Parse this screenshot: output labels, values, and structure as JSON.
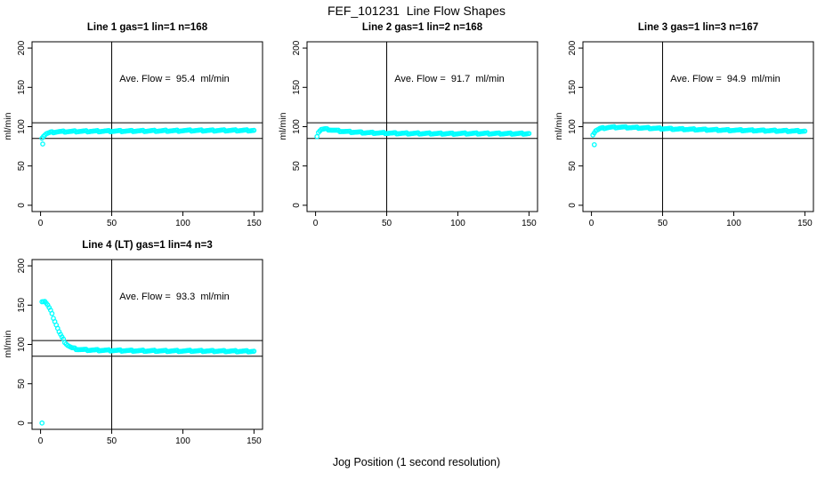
{
  "figure": {
    "title": "FEF_101231  Line Flow Shapes",
    "xlabel": "Jog Position (1 second resolution)",
    "point_color": "#00ffff",
    "axis_color": "#000000",
    "background": "#ffffff"
  },
  "chart_data": [
    {
      "type": "scatter",
      "title": "Line 1 gas=1 lin=1 n=168",
      "annotation": "Ave. Flow =  95.4  ml/min",
      "ave_flow_ml_min": 95.4,
      "gas": 1,
      "lin": 1,
      "n": 168,
      "ylabel": "ml/min",
      "xlim": [
        0,
        150
      ],
      "ylim": [
        0,
        200
      ],
      "xticks": [
        0,
        50,
        100,
        150
      ],
      "yticks": [
        0,
        50,
        100,
        150,
        200
      ],
      "ref_hlines": [
        85,
        105
      ],
      "ref_vline": 50,
      "points_x_range": [
        1,
        150
      ],
      "profile": [
        [
          1,
          86
        ],
        [
          2,
          88
        ],
        [
          4,
          91
        ],
        [
          7,
          92.5
        ],
        [
          12,
          93.5
        ],
        [
          25,
          94
        ],
        [
          60,
          94.5
        ],
        [
          100,
          95
        ],
        [
          150,
          95.3
        ]
      ],
      "outliers": [
        [
          1.5,
          78
        ]
      ]
    },
    {
      "type": "scatter",
      "title": "Line 2 gas=1 lin=2 n=168",
      "annotation": "Ave. Flow =  91.7  ml/min",
      "ave_flow_ml_min": 91.7,
      "gas": 1,
      "lin": 2,
      "n": 168,
      "ylabel": "ml/min",
      "xlim": [
        0,
        150
      ],
      "ylim": [
        0,
        200
      ],
      "xticks": [
        0,
        50,
        100,
        150
      ],
      "yticks": [
        0,
        50,
        100,
        150,
        200
      ],
      "ref_hlines": [
        85,
        105
      ],
      "ref_vline": 50,
      "points_x_range": [
        1,
        150
      ],
      "profile": [
        [
          1,
          88
        ],
        [
          2,
          93
        ],
        [
          4,
          96.5
        ],
        [
          7,
          96.8
        ],
        [
          12,
          95.5
        ],
        [
          20,
          93.8
        ],
        [
          35,
          92.3
        ],
        [
          60,
          91.5
        ],
        [
          100,
          91.2
        ],
        [
          150,
          91.2
        ]
      ],
      "outliers": []
    },
    {
      "type": "scatter",
      "title": "Line 3 gas=1 lin=3 n=167",
      "annotation": "Ave. Flow =  94.9  ml/min",
      "ave_flow_ml_min": 94.9,
      "gas": 1,
      "lin": 3,
      "n": 167,
      "ylabel": "ml/min",
      "xlim": [
        0,
        150
      ],
      "ylim": [
        0,
        200
      ],
      "xticks": [
        0,
        50,
        100,
        150
      ],
      "yticks": [
        0,
        50,
        100,
        150,
        200
      ],
      "ref_hlines": [
        85,
        105
      ],
      "ref_vline": 50,
      "points_x_range": [
        1,
        150
      ],
      "profile": [
        [
          1,
          90
        ],
        [
          3,
          95
        ],
        [
          6,
          97.5
        ],
        [
          12,
          99
        ],
        [
          20,
          99.3
        ],
        [
          35,
          98.5
        ],
        [
          60,
          97
        ],
        [
          100,
          95.5
        ],
        [
          150,
          94.3
        ]
      ],
      "outliers": [
        [
          2,
          77
        ]
      ]
    },
    {
      "type": "scatter",
      "title": "Line 4 (LT) gas=1 lin=4 n=3",
      "annotation": "Ave. Flow =  93.3  ml/min",
      "ave_flow_ml_min": 93.3,
      "gas": 1,
      "lin": 4,
      "n": 3,
      "ylabel": "ml/min",
      "xlim": [
        0,
        150
      ],
      "ylim": [
        0,
        200
      ],
      "xticks": [
        0,
        50,
        100,
        150
      ],
      "yticks": [
        0,
        50,
        100,
        150,
        200
      ],
      "ref_hlines": [
        85,
        105
      ],
      "ref_vline": 50,
      "points_x_range": [
        1,
        150
      ],
      "profile": [
        [
          1,
          155
        ],
        [
          3,
          155
        ],
        [
          5,
          150
        ],
        [
          7,
          143
        ],
        [
          9,
          134
        ],
        [
          11,
          125
        ],
        [
          13,
          116
        ],
        [
          15,
          109
        ],
        [
          17,
          103
        ],
        [
          19,
          99
        ],
        [
          22,
          95.5
        ],
        [
          26,
          93.8
        ],
        [
          32,
          93
        ],
        [
          45,
          92.5
        ],
        [
          70,
          92
        ],
        [
          110,
          91.7
        ],
        [
          150,
          91.3
        ]
      ],
      "outliers": [
        [
          1,
          0
        ]
      ]
    }
  ]
}
